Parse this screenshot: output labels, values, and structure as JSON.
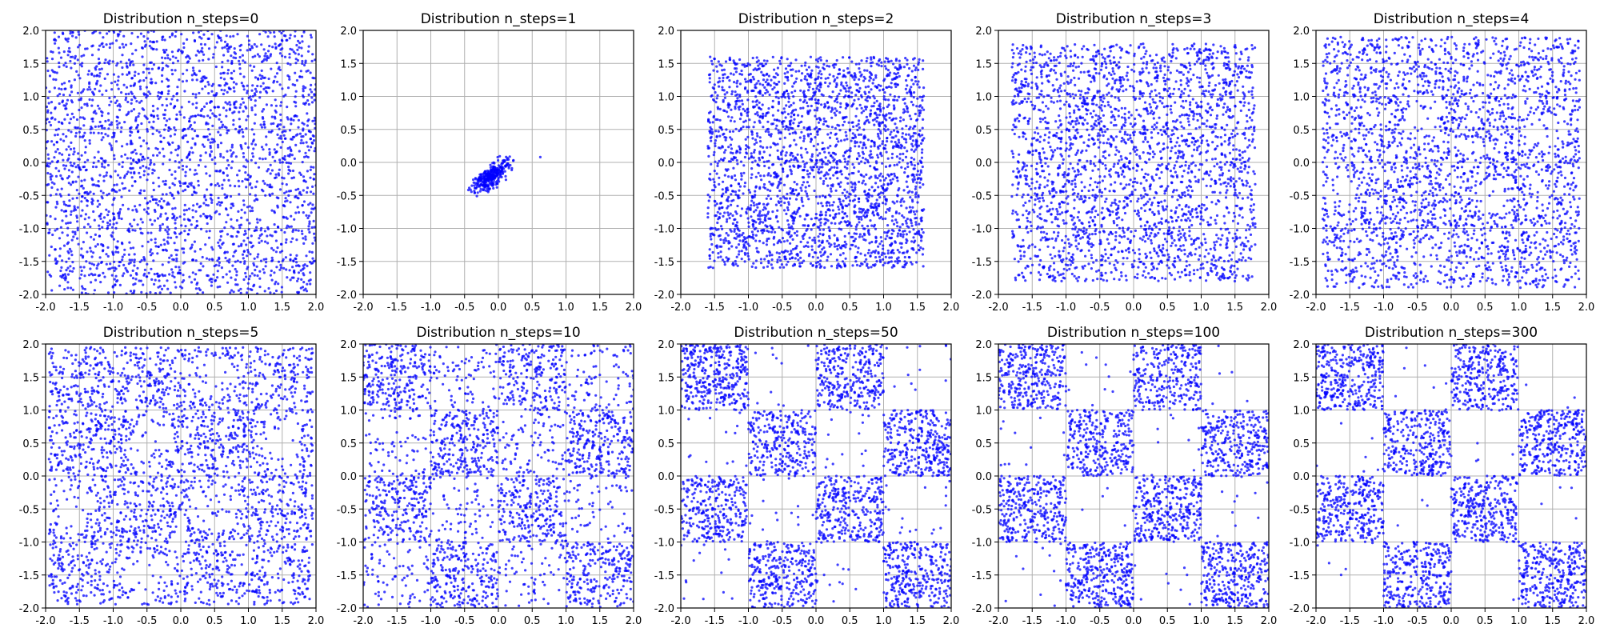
{
  "figure": {
    "point_color": "#0000ff",
    "grid_color": "#b0b0b0",
    "background": "#ffffff"
  },
  "chart_data": [
    {
      "type": "scatter",
      "title": "Distribution n_steps=0",
      "n_steps": 0,
      "xlim": [
        -2,
        2
      ],
      "ylim": [
        -2,
        2
      ],
      "grid": true,
      "xticks": [
        "-2.0",
        "-1.5",
        "-1.0",
        "-0.5",
        "0.0",
        "0.5",
        "1.0",
        "1.5",
        "2.0"
      ],
      "yticks": [
        "-2.0",
        "-1.5",
        "-1.0",
        "-0.5",
        "0.0",
        "0.5",
        "1.0",
        "1.5",
        "2.0"
      ],
      "pattern": "uniform",
      "region": [
        -2,
        2,
        -2,
        2
      ]
    },
    {
      "type": "scatter",
      "title": "Distribution n_steps=1",
      "n_steps": 1,
      "xlim": [
        -2,
        2
      ],
      "ylim": [
        -2,
        2
      ],
      "grid": true,
      "xticks": [
        "-2.0",
        "-1.5",
        "-1.0",
        "-0.5",
        "0.0",
        "0.5",
        "1.0",
        "1.5",
        "2.0"
      ],
      "yticks": [
        "-2.0",
        "-1.5",
        "-1.0",
        "-0.5",
        "0.0",
        "0.5",
        "1.0",
        "1.5",
        "2.0"
      ],
      "pattern": "blob",
      "center": [
        -0.1,
        -0.2
      ],
      "spread": [
        0.3,
        0.3
      ]
    },
    {
      "type": "scatter",
      "title": "Distribution n_steps=2",
      "n_steps": 2,
      "xlim": [
        -2,
        2
      ],
      "ylim": [
        -2,
        2
      ],
      "grid": true,
      "xticks": [
        "-2.0",
        "-1.5",
        "-1.0",
        "-0.5",
        "0.0",
        "0.5",
        "1.0",
        "1.5",
        "2.0"
      ],
      "yticks": [
        "-2.0",
        "-1.5",
        "-1.0",
        "-0.5",
        "0.0",
        "0.5",
        "1.0",
        "1.5",
        "2.0"
      ],
      "pattern": "fill",
      "region": [
        -1.6,
        1.6,
        -1.6,
        1.6
      ]
    },
    {
      "type": "scatter",
      "title": "Distribution n_steps=3",
      "n_steps": 3,
      "xlim": [
        -2,
        2
      ],
      "ylim": [
        -2,
        2
      ],
      "grid": true,
      "xticks": [
        "-2.0",
        "-1.5",
        "-1.0",
        "-0.5",
        "0.0",
        "0.5",
        "1.0",
        "1.5",
        "2.0"
      ],
      "yticks": [
        "-2.0",
        "-1.5",
        "-1.0",
        "-0.5",
        "0.0",
        "0.5",
        "1.0",
        "1.5",
        "2.0"
      ],
      "pattern": "fill",
      "region": [
        -1.8,
        1.8,
        -1.8,
        1.8
      ]
    },
    {
      "type": "scatter",
      "title": "Distribution n_steps=4",
      "n_steps": 4,
      "xlim": [
        -2,
        2
      ],
      "ylim": [
        -2,
        2
      ],
      "grid": true,
      "xticks": [
        "-2.0",
        "-1.5",
        "-1.0",
        "-0.5",
        "0.0",
        "0.5",
        "1.0",
        "1.5",
        "2.0"
      ],
      "yticks": [
        "-2.0",
        "-1.5",
        "-1.0",
        "-0.5",
        "0.0",
        "0.5",
        "1.0",
        "1.5",
        "2.0"
      ],
      "pattern": "fill",
      "region": [
        -1.9,
        1.9,
        -1.9,
        1.9
      ],
      "holes": [
        [
          0.6,
          -0.5,
          0.3
        ],
        [
          -0.45,
          0.55,
          0.3
        ],
        [
          1.45,
          0.5,
          0.3
        ],
        [
          -1.55,
          -0.5,
          0.3
        ],
        [
          -0.45,
          -1.45,
          0.3
        ],
        [
          0.45,
          1.45,
          0.3
        ]
      ]
    },
    {
      "type": "scatter",
      "title": "Distribution n_steps=5",
      "n_steps": 5,
      "xlim": [
        -2,
        2
      ],
      "ylim": [
        -2,
        2
      ],
      "grid": true,
      "xticks": [
        "-2.0",
        "-1.5",
        "-1.0",
        "-0.5",
        "0.0",
        "0.5",
        "1.0",
        "1.5",
        "2.0"
      ],
      "yticks": [
        "-2.0",
        "-1.5",
        "-1.0",
        "-0.5",
        "0.0",
        "0.5",
        "1.0",
        "1.5",
        "2.0"
      ],
      "pattern": "fill",
      "region": [
        -1.95,
        1.95,
        -1.95,
        1.95
      ],
      "holes": [
        [
          0.45,
          -0.5,
          0.4
        ],
        [
          -0.45,
          0.5,
          0.4
        ],
        [
          1.45,
          0.5,
          0.4
        ],
        [
          -1.55,
          -0.5,
          0.4
        ],
        [
          -0.45,
          -1.5,
          0.4
        ],
        [
          0.45,
          1.5,
          0.4
        ]
      ]
    },
    {
      "type": "scatter",
      "title": "Distribution n_steps=10",
      "n_steps": 10,
      "xlim": [
        -2,
        2
      ],
      "ylim": [
        -2,
        2
      ],
      "grid": true,
      "xticks": [
        "-2.0",
        "-1.5",
        "-1.0",
        "-0.5",
        "0.0",
        "0.5",
        "1.0",
        "1.5",
        "2.0"
      ],
      "yticks": [
        "-2.0",
        "-1.5",
        "-1.0",
        "-0.5",
        "0.0",
        "0.5",
        "1.0",
        "1.5",
        "2.0"
      ],
      "pattern": "checker",
      "soft": 0.6
    },
    {
      "type": "scatter",
      "title": "Distribution n_steps=50",
      "n_steps": 50,
      "xlim": [
        -2,
        2
      ],
      "ylim": [
        -2,
        2
      ],
      "grid": true,
      "xticks": [
        "-2.0",
        "-1.5",
        "-1.0",
        "-0.5",
        "0.0",
        "0.5",
        "1.0",
        "1.5",
        "2.0"
      ],
      "yticks": [
        "-2.0",
        "-1.5",
        "-1.0",
        "-0.5",
        "0.0",
        "0.5",
        "1.0",
        "1.5",
        "2.0"
      ],
      "pattern": "checker",
      "soft": 0.1
    },
    {
      "type": "scatter",
      "title": "Distribution n_steps=100",
      "n_steps": 100,
      "xlim": [
        -2,
        2
      ],
      "ylim": [
        -2,
        2
      ],
      "grid": true,
      "xticks": [
        "-2.0",
        "-1.5",
        "-1.0",
        "-0.5",
        "0.0",
        "0.5",
        "1.0",
        "1.5",
        "2.0"
      ],
      "yticks": [
        "-2.0",
        "-1.5",
        "-1.0",
        "-0.5",
        "0.0",
        "0.5",
        "1.0",
        "1.5",
        "2.0"
      ],
      "pattern": "checker",
      "soft": 0.05
    },
    {
      "type": "scatter",
      "title": "Distribution n_steps=300",
      "n_steps": 300,
      "xlim": [
        -2,
        2
      ],
      "ylim": [
        -2,
        2
      ],
      "grid": true,
      "xticks": [
        "-2.0",
        "-1.5",
        "-1.0",
        "-0.5",
        "0.0",
        "0.5",
        "1.0",
        "1.5",
        "2.0"
      ],
      "yticks": [
        "-2.0",
        "-1.5",
        "-1.0",
        "-0.5",
        "0.0",
        "0.5",
        "1.0",
        "1.5",
        "2.0"
      ],
      "pattern": "checker",
      "soft": 0.03
    }
  ]
}
